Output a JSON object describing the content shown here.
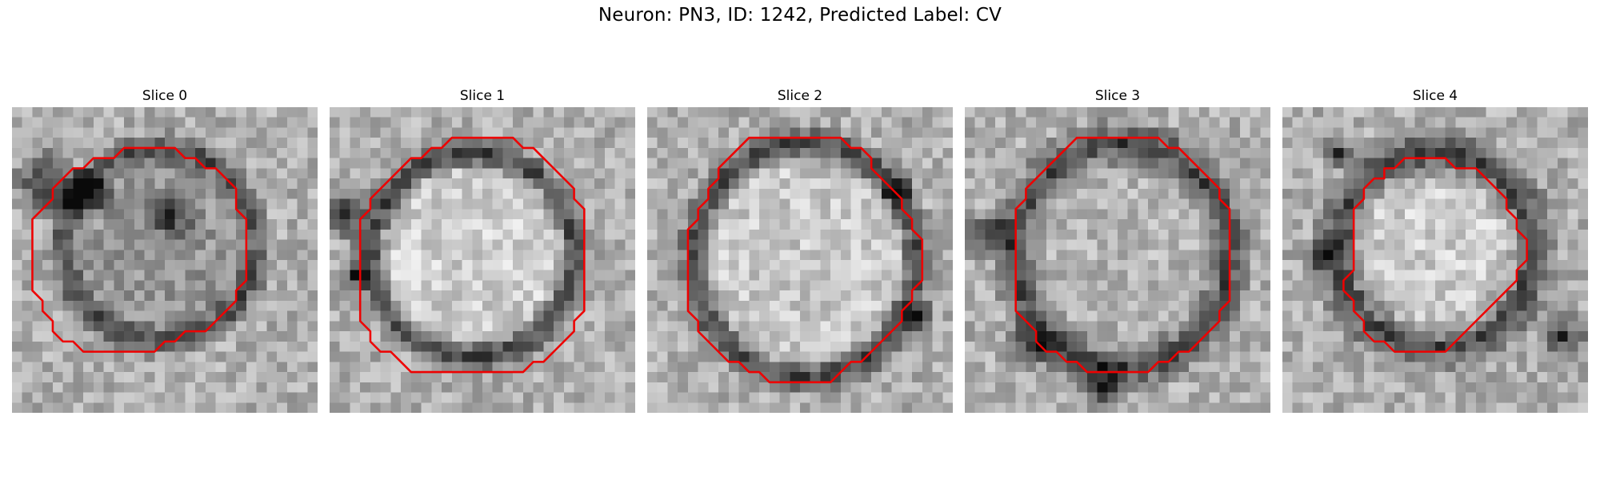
{
  "figure": {
    "title": "Neuron: PN3, ID: 1242, Predicted Label: CV"
  },
  "panels": [
    {
      "title": "Slice 0"
    },
    {
      "title": "Slice 1"
    },
    {
      "title": "Slice 2"
    },
    {
      "title": "Slice 3"
    },
    {
      "title": "Slice 4"
    }
  ],
  "colors": {
    "contour": "#ee0000",
    "colormap": "grayscale"
  }
}
